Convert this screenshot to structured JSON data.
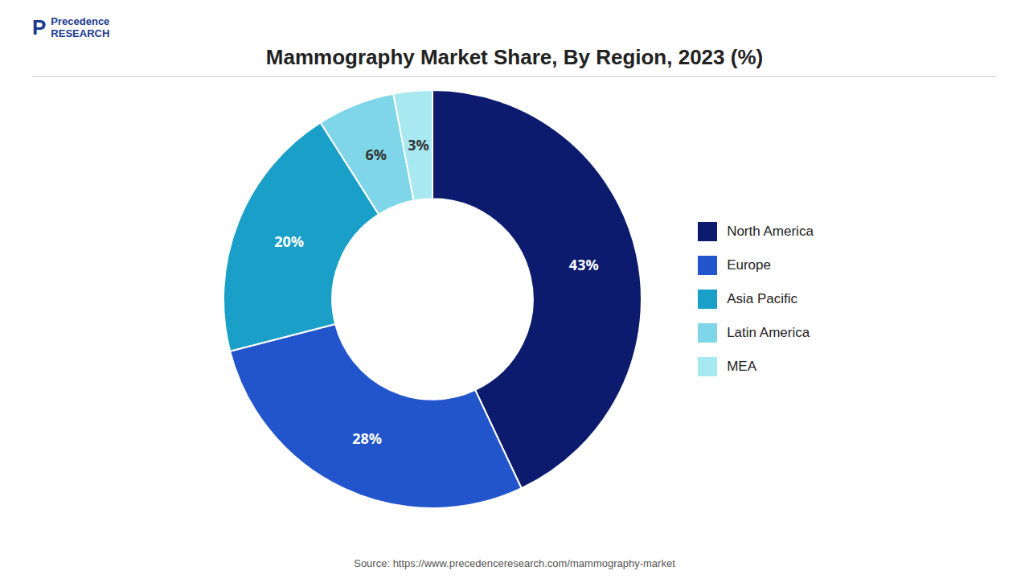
{
  "chart_data": {
    "type": "pie",
    "title": "Mammography Market Share, By Region, 2023 (%)",
    "categories": [
      "North America",
      "Europe",
      "Asia Pacific",
      "Latin America",
      "MEA"
    ],
    "values": [
      43,
      28,
      20,
      6,
      3
    ],
    "value_labels": [
      "43%",
      "28%",
      "20%",
      "6%",
      "3%"
    ],
    "colors": [
      "#0d1b6e",
      "#2255cc",
      "#1aa0c8",
      "#7fd6e8",
      "#a8e8f0"
    ],
    "data_labels": true,
    "legend": "right",
    "annotations": [
      "P",
      "Precedence",
      "RESEARCH",
      "Source: https://www.precedenceresearch.com/mammography-market"
    ]
  }
}
